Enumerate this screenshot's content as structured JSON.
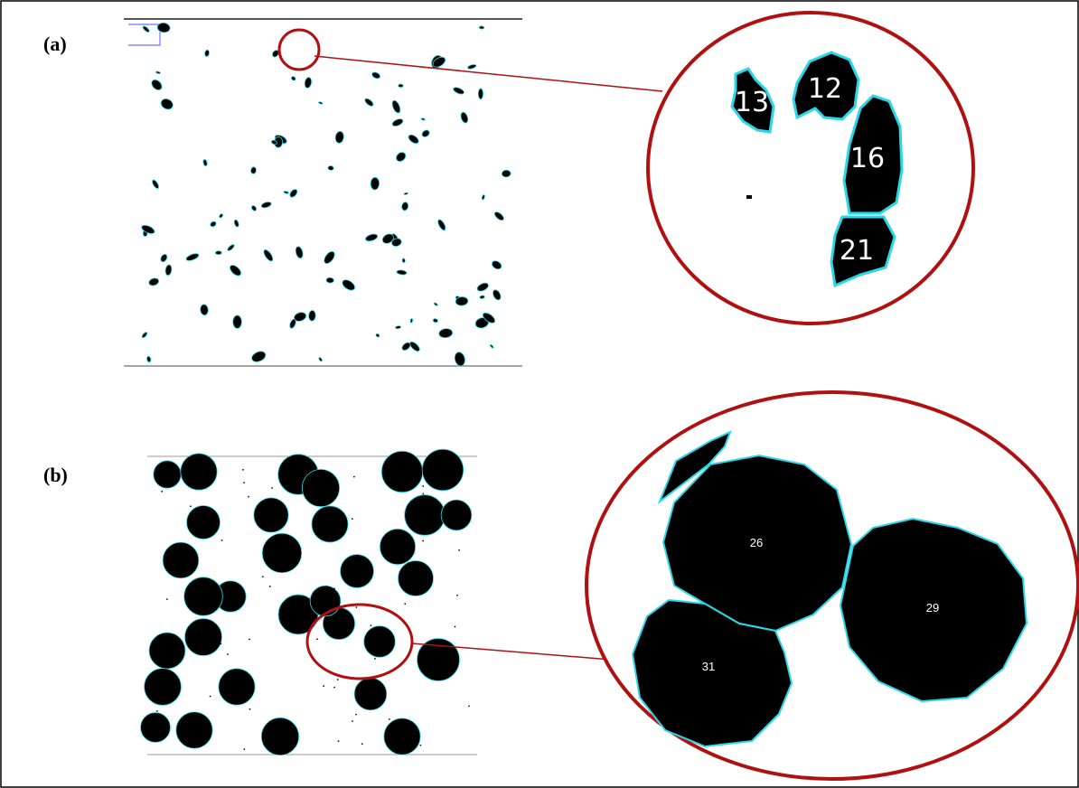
{
  "panels": [
    {
      "label": "(a)",
      "blob_labels": [
        "13",
        "12",
        "16",
        "21"
      ]
    },
    {
      "label": "(b)",
      "blob_labels": [
        "26",
        "29",
        "31"
      ]
    }
  ]
}
